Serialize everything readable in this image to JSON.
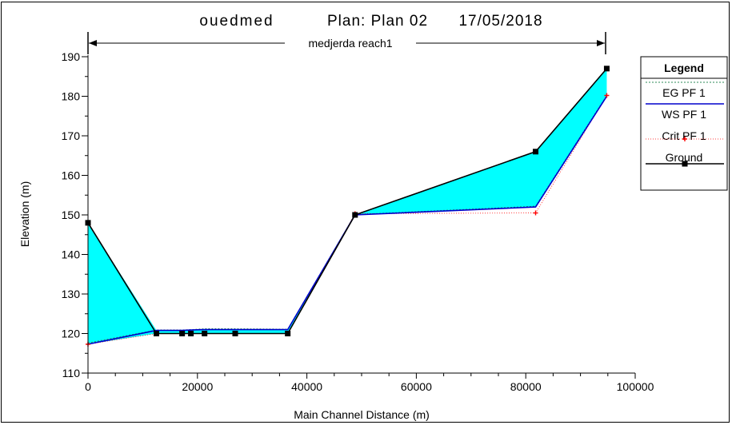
{
  "chart_data": {
    "type": "line",
    "title_parts": [
      "ouedmed",
      "Plan: Plan 02",
      "17/05/2018"
    ],
    "reach_label": "medjerda reach1",
    "xlabel": "Main Channel Distance (m)",
    "ylabel": "Elevation (m)",
    "xlim": [
      0,
      100000
    ],
    "ylim": [
      110,
      190
    ],
    "xticks": [
      0,
      20000,
      40000,
      60000,
      80000,
      100000
    ],
    "xtick_labels": [
      "0",
      "20000",
      "40000",
      "60000",
      "80000",
      "100000"
    ],
    "yticks": [
      110,
      120,
      130,
      140,
      150,
      160,
      170,
      180,
      190
    ],
    "ytick_labels": [
      "110",
      "120",
      "130",
      "140",
      "150",
      "160",
      "170",
      "180",
      "190"
    ],
    "grid": false,
    "legend_position": "top-right",
    "legend_title": "Legend",
    "series": [
      {
        "name": "EG  PF 1",
        "color": "#2e8b57",
        "style": "dotted",
        "x": [
          0,
          12500,
          17200,
          18800,
          21300,
          26900,
          36500,
          48800,
          81800,
          94800
        ],
        "y": [
          117.6,
          120.9,
          120.9,
          121.0,
          121.2,
          121.2,
          121.1,
          150.1,
          152.2,
          180.2
        ]
      },
      {
        "name": "WS  PF 1",
        "color": "#0000cc",
        "style": "solid",
        "x": [
          0,
          12500,
          17200,
          18800,
          21300,
          26900,
          36500,
          48800,
          81800,
          94800
        ],
        "y": [
          117.3,
          120.8,
          120.8,
          120.9,
          121.0,
          121.0,
          121.0,
          150.0,
          152.0,
          180.0
        ]
      },
      {
        "name": "Crit  PF 1",
        "color": "#ff0000",
        "style": "dotted-plus",
        "x": [
          0,
          12500,
          17200,
          18800,
          21300,
          26900,
          36500,
          48800,
          81800,
          94800
        ],
        "y": [
          117.3,
          120.0,
          120.0,
          120.0,
          120.0,
          120.0,
          120.0,
          150.3,
          150.5,
          180.2
        ]
      },
      {
        "name": "Ground",
        "color": "#000000",
        "style": "solid-square",
        "x": [
          0,
          12500,
          17200,
          18800,
          21300,
          26900,
          36500,
          48800,
          81800,
          94800
        ],
        "y": [
          148.0,
          120.0,
          120.0,
          120.0,
          120.0,
          120.0,
          120.0,
          150.0,
          166.0,
          187.0
        ]
      }
    ],
    "water_fill_color": "#00ffff"
  }
}
